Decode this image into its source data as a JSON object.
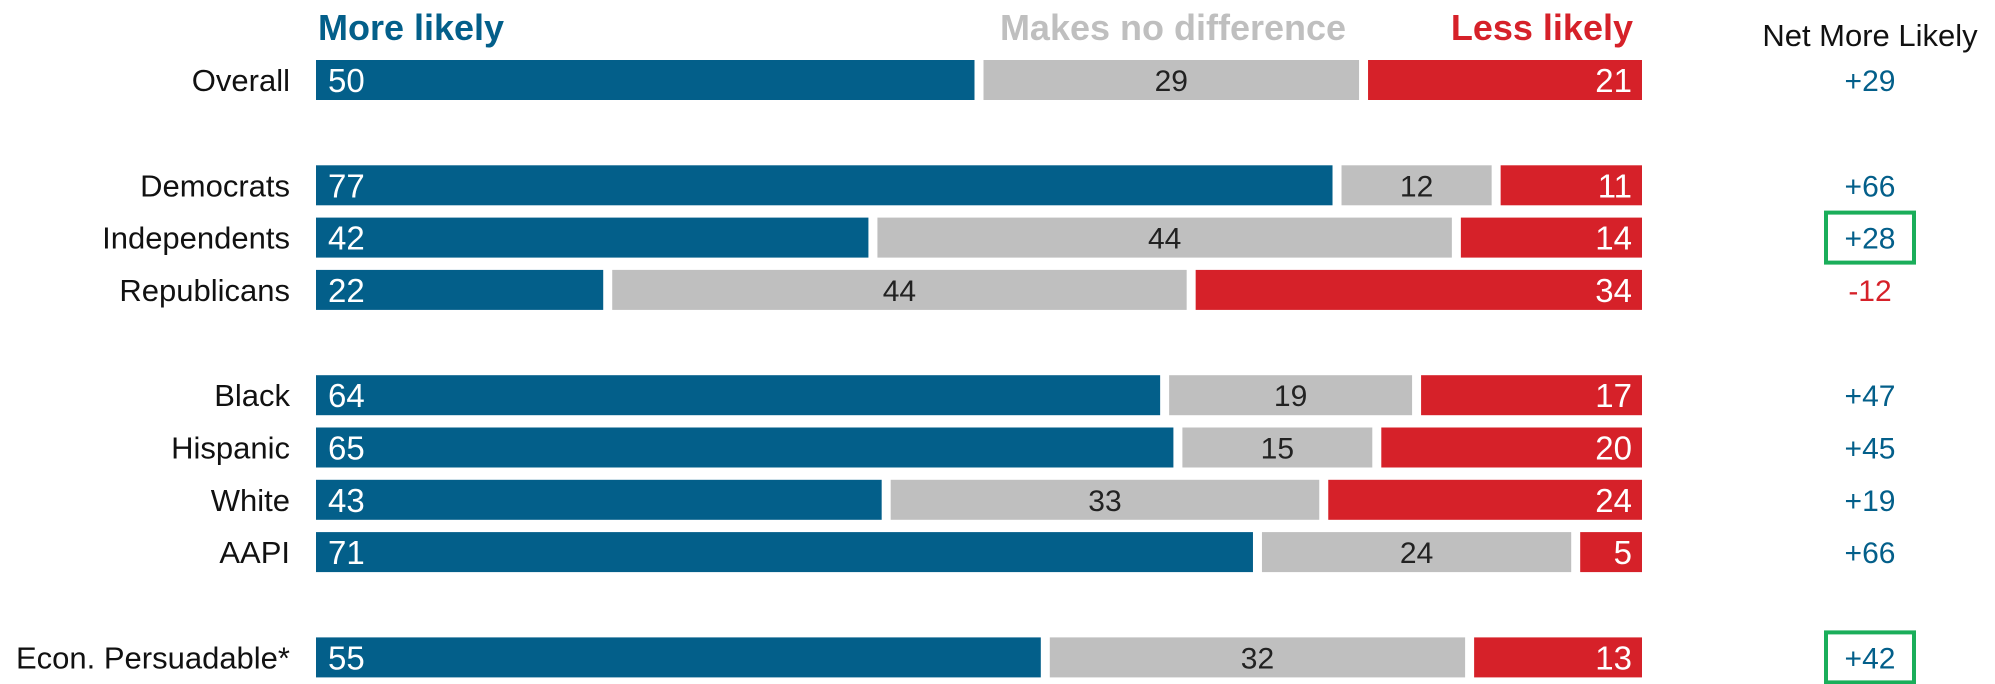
{
  "chart_data": {
    "type": "bar",
    "stacked": "100% horizontal",
    "legend": {
      "more": "More likely",
      "nodiff": "Makes no difference",
      "less": "Less likely"
    },
    "net_header": "Net More Likely",
    "colors": {
      "more": "#035f8a",
      "nodiff": "#bfbfbf",
      "less": "#d62129",
      "net_positive": "#035f8a",
      "net_negative": "#d62129",
      "highlight_box": "#1aae5a"
    },
    "rows": [
      {
        "label": "Overall",
        "more": 50,
        "nodiff": 29,
        "less": 21,
        "net": "+29",
        "highlight": false,
        "group": 0
      },
      {
        "label": "Democrats",
        "more": 77,
        "nodiff": 12,
        "less": 11,
        "net": "+66",
        "highlight": false,
        "group": 1
      },
      {
        "label": "Independents",
        "more": 42,
        "nodiff": 44,
        "less": 14,
        "net": "+28",
        "highlight": true,
        "group": 1
      },
      {
        "label": "Republicans",
        "more": 22,
        "nodiff": 44,
        "less": 34,
        "net": "-12",
        "highlight": false,
        "group": 1
      },
      {
        "label": "Black",
        "more": 64,
        "nodiff": 19,
        "less": 17,
        "net": "+47",
        "highlight": false,
        "group": 2
      },
      {
        "label": "Hispanic",
        "more": 65,
        "nodiff": 15,
        "less": 20,
        "net": "+45",
        "highlight": false,
        "group": 2
      },
      {
        "label": "White",
        "more": 43,
        "nodiff": 33,
        "less": 24,
        "net": "+19",
        "highlight": false,
        "group": 2
      },
      {
        "label": "AAPI",
        "more": 71,
        "nodiff": 24,
        "less": 5,
        "net": "+66",
        "highlight": false,
        "group": 2
      },
      {
        "label": "Econ. Persuadable*",
        "more": 55,
        "nodiff": 32,
        "less": 13,
        "net": "+42",
        "highlight": true,
        "group": 3
      }
    ]
  }
}
